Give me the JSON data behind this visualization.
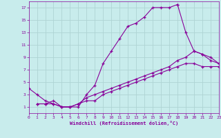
{
  "background_color": "#c8ecec",
  "grid_color": "#aed4d4",
  "line_color": "#880099",
  "xlabel": "Windchill (Refroidissement éolien,°C)",
  "xlim": [
    0,
    23
  ],
  "ylim": [
    0,
    18
  ],
  "xticks": [
    0,
    1,
    2,
    3,
    4,
    5,
    6,
    7,
    8,
    9,
    10,
    11,
    12,
    13,
    14,
    15,
    16,
    17,
    18,
    19,
    20,
    21,
    22,
    23
  ],
  "yticks": [
    1,
    3,
    5,
    7,
    9,
    11,
    13,
    15,
    17
  ],
  "lines": [
    {
      "x": [
        0,
        1,
        2,
        3,
        4,
        5,
        6,
        7,
        8,
        9,
        10,
        11,
        12,
        13,
        14,
        15,
        16,
        17,
        18
      ],
      "y": [
        4,
        3,
        2,
        1.5,
        1,
        1,
        1,
        3,
        4.5,
        8,
        10,
        12,
        14,
        14.5,
        15.5,
        17,
        17,
        17,
        17.5
      ]
    },
    {
      "x": [
        18,
        19,
        20,
        21,
        22,
        23
      ],
      "y": [
        17.5,
        13,
        10,
        9.5,
        9,
        8
      ]
    },
    {
      "x": [
        1,
        2,
        3,
        4,
        5,
        6,
        7,
        8,
        9,
        10,
        11,
        12,
        13,
        14,
        15,
        16,
        17,
        18,
        19,
        20,
        21,
        22,
        23
      ],
      "y": [
        1.5,
        1.5,
        1.5,
        1,
        1,
        1.5,
        2.5,
        3,
        3.5,
        4,
        4.5,
        5,
        5.5,
        6,
        6.5,
        7,
        7.5,
        8.5,
        9,
        10,
        9.5,
        8.5,
        8
      ]
    },
    {
      "x": [
        1,
        2,
        3,
        4,
        5,
        6,
        7,
        8,
        9,
        10,
        11,
        12,
        13,
        14,
        15,
        16,
        17,
        18,
        19,
        20,
        21,
        22,
        23
      ],
      "y": [
        1.5,
        1.5,
        2,
        1,
        1,
        1.5,
        2,
        2,
        3,
        3.5,
        4,
        4.5,
        5,
        5.5,
        6,
        6.5,
        7,
        7.5,
        8,
        8,
        7.5,
        7.5,
        7.5
      ]
    }
  ]
}
